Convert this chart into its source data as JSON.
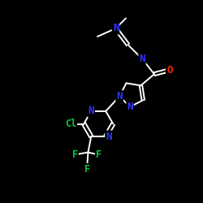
{
  "background_color": "#000000",
  "bond_color": "#ffffff",
  "atom_colors": {
    "N": "#3333ff",
    "O": "#ff2200",
    "Cl": "#00cc44",
    "F": "#00cc44",
    "C": "#ffffff"
  },
  "figsize": [
    2.5,
    2.5
  ],
  "dpi": 100,
  "xlim": [
    0,
    10
  ],
  "ylim": [
    0,
    10
  ]
}
